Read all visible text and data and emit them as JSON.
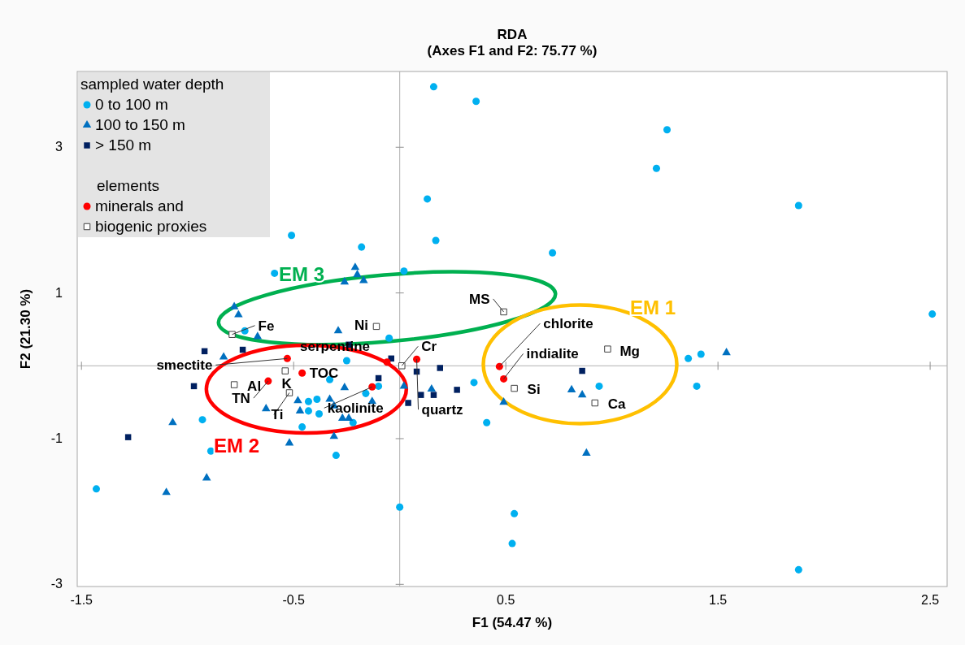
{
  "chart_data": {
    "type": "scatter",
    "title": "RDA",
    "subtitle": "(Axes F1 and F2: 75.77 %)",
    "xlabel": "F1 (54.47 %)",
    "ylabel": "F2 (21.30 %)",
    "legend_title": "sampled water depth",
    "legend": "top left",
    "grid": false,
    "xlim": [
      -1.52,
      2.58
    ],
    "ylim": [
      -3.03,
      4.04
    ],
    "xticks": [
      -1.5,
      -0.5,
      0.5,
      1.5,
      2.5
    ],
    "yticks": [
      -3,
      -1,
      1,
      3
    ],
    "series": [
      {
        "name": "0 to 100 m",
        "color": "#00b0f0",
        "marker": "circle",
        "x": [
          -0.51,
          -0.18,
          -0.59,
          0.02,
          0.16,
          0.36,
          1.26,
          1.21,
          0.13,
          0.17,
          0.72,
          1.88,
          2.51,
          1.88,
          -0.73,
          -0.05,
          -0.25,
          -0.33,
          -0.1,
          -0.16,
          -0.43,
          -0.39,
          -0.43,
          -0.38,
          -0.22,
          -0.46,
          -0.3,
          -0.93,
          -0.89,
          -1.43,
          0.0,
          0.35,
          0.41,
          0.94,
          1.36,
          1.42,
          1.4,
          0.54,
          0.53
        ],
        "values": [
          1.79,
          1.63,
          1.27,
          1.3,
          3.83,
          3.63,
          3.24,
          2.71,
          2.29,
          1.72,
          1.55,
          2.2,
          0.71,
          -2.8,
          0.48,
          0.38,
          0.07,
          -0.19,
          -0.28,
          -0.38,
          -0.49,
          -0.46,
          -0.62,
          -0.66,
          -0.78,
          -0.84,
          -1.23,
          -0.74,
          -1.17,
          -1.69,
          -1.94,
          -0.23,
          -0.78,
          -0.28,
          0.1,
          0.16,
          -0.28,
          -2.03,
          -2.44
        ]
      },
      {
        "name": "100 to 150 m",
        "color": "#0070c0",
        "marker": "triangle",
        "x": [
          -0.21,
          -0.2,
          -0.17,
          -0.26,
          -0.78,
          -0.76,
          1.54,
          -0.67,
          -0.29,
          -0.83,
          -0.26,
          -0.48,
          -0.33,
          -0.13,
          -0.31,
          -0.63,
          -0.47,
          -0.27,
          -0.24,
          -0.31,
          -0.52,
          -1.07,
          -0.91,
          -1.1,
          0.02,
          0.15,
          0.49,
          0.81,
          0.86,
          0.88
        ],
        "values": [
          1.35,
          1.25,
          1.17,
          1.15,
          0.81,
          0.7,
          0.18,
          0.4,
          0.48,
          0.12,
          -0.3,
          -0.48,
          -0.46,
          -0.49,
          -0.55,
          -0.59,
          -0.62,
          -0.72,
          -0.72,
          -0.97,
          -1.06,
          -0.78,
          -1.54,
          -1.74,
          -0.28,
          -0.32,
          -0.5,
          -0.33,
          -0.4,
          -1.2
        ]
      },
      {
        "name": "> 150 m",
        "color": "#002060",
        "marker": "square",
        "x": [
          -0.24,
          -0.92,
          -0.74,
          -0.04,
          -0.1,
          -0.97,
          -1.28,
          0.08,
          0.19,
          0.1,
          0.16,
          0.27,
          0.04,
          0.86
        ],
        "values": [
          0.29,
          0.2,
          0.22,
          0.1,
          -0.17,
          -0.28,
          -0.98,
          -0.08,
          -0.03,
          -0.4,
          -0.4,
          -0.33,
          -0.51,
          -0.07
        ]
      },
      {
        "name": "minerals and",
        "color": "#ff0000",
        "marker": "circle",
        "x": [
          -0.53,
          -0.06,
          -0.46,
          -0.62,
          -0.13,
          0.08,
          0.47,
          0.49
        ],
        "values": [
          0.1,
          0.05,
          -0.1,
          -0.21,
          -0.29,
          0.09,
          -0.01,
          -0.18
        ]
      },
      {
        "name": "biogenic proxies",
        "color": "#ffffff",
        "marker": "square",
        "x": [
          -0.79,
          -0.11,
          -0.54,
          -0.78,
          -0.52,
          0.01,
          0.49,
          0.98,
          0.54,
          0.92
        ],
        "values": [
          0.43,
          0.54,
          -0.07,
          -0.26,
          -0.37,
          0.0,
          0.74,
          0.23,
          -0.31,
          -0.51
        ]
      }
    ],
    "annotations": [
      "elements",
      {
        "text": "smectite",
        "x": -0.53,
        "y": 0.1
      },
      {
        "text": "serpentine",
        "x": -0.06,
        "y": 0.05
      },
      {
        "text": "TOC",
        "x": -0.46,
        "y": -0.1
      },
      {
        "text": "TN",
        "x": -0.62,
        "y": -0.21
      },
      {
        "text": "kaolinite",
        "x": -0.13,
        "y": -0.29
      },
      {
        "text": "quartz",
        "x": 0.08,
        "y": 0.09
      },
      {
        "text": "chlorite",
        "x": 0.47,
        "y": -0.01
      },
      {
        "text": "indialite",
        "x": 0.49,
        "y": -0.18
      },
      {
        "text": "Fe",
        "x": -0.79,
        "y": 0.43
      },
      {
        "text": "Ni",
        "x": -0.11,
        "y": 0.54
      },
      {
        "text": "K",
        "x": -0.54,
        "y": -0.07
      },
      {
        "text": "Al",
        "x": -0.78,
        "y": -0.26
      },
      {
        "text": "Ti",
        "x": -0.52,
        "y": -0.37
      },
      {
        "text": "Cr",
        "x": 0.01,
        "y": 0.0
      },
      {
        "text": "MS",
        "x": 0.49,
        "y": 0.74
      },
      {
        "text": "Mg",
        "x": 0.98,
        "y": 0.23
      },
      {
        "text": "Si",
        "x": 0.54,
        "y": -0.31
      },
      {
        "text": "Ca",
        "x": 0.92,
        "y": -0.51
      },
      "EM 3",
      "EM 1",
      "EM 2"
    ]
  }
}
